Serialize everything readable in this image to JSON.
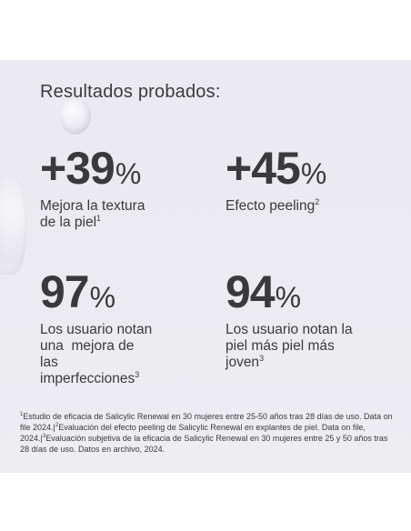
{
  "heading": "Resultados probados:",
  "stats": [
    {
      "value": "+39",
      "unit": "%",
      "lines": [
        "Mejora la textura",
        "de la piel"
      ],
      "note": "1"
    },
    {
      "value": "+45",
      "unit": "%",
      "lines": [
        "Efecto peeling"
      ],
      "note": "2"
    },
    {
      "value": "97",
      "unit": "%",
      "lines": [
        "Los usuario notan",
        "una  mejora de",
        "las",
        "imperfecciones"
      ],
      "note": "3"
    },
    {
      "value": "94",
      "unit": "%",
      "lines": [
        "Los usuario notan la",
        "piel más piel más",
        "joven"
      ],
      "note": "3"
    }
  ],
  "footnote": {
    "n1": "1",
    "t1": "Estudio de eficacia de Salicylic Renewal en 30 mujeres entre 25-50 años tras 28 días de uso. Data on file 2024.|",
    "n2": "2",
    "t2": "Evaluación del efecto peeling de Salicylic Renewal en explantes de piel. Data on file, 2024.|",
    "n3": "3",
    "t3": "Evaluación subjetiva de la eficacia de Salicylic Renewal en 30 mujeres entre 25 y 50 años tras 28 días de uso. Datos en archivo, 2024."
  }
}
